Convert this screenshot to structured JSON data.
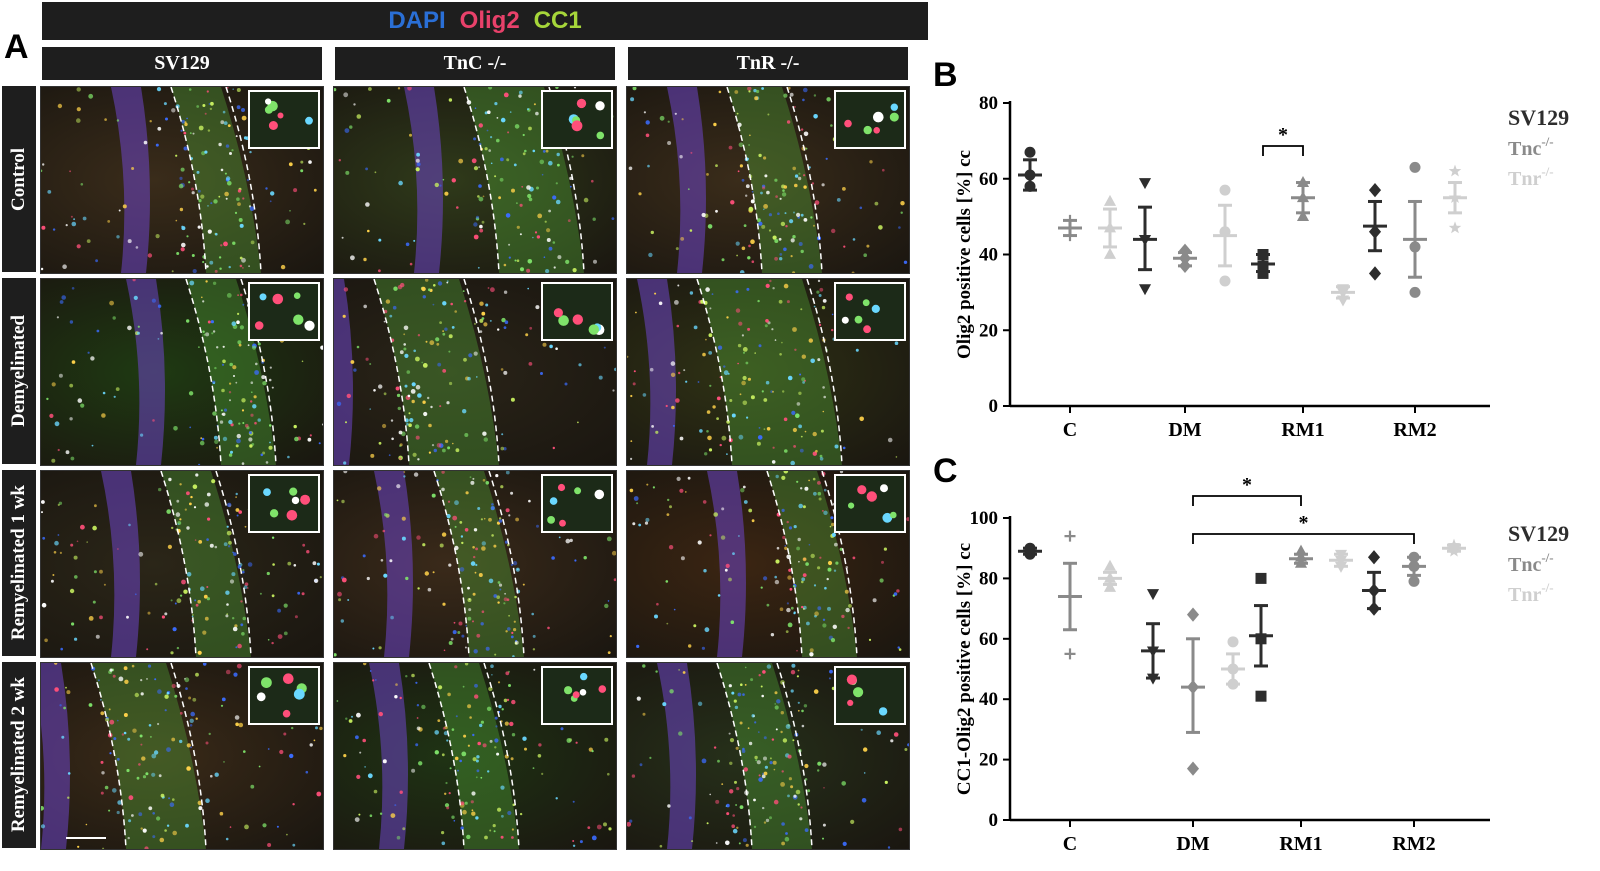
{
  "panel_a": {
    "letter": "A",
    "stain_labels": [
      {
        "text": "DAPI",
        "color": "#2a6fd6"
      },
      {
        "text": "Olig2",
        "color": "#e8416a"
      },
      {
        "text": "CC1",
        "color": "#a6d63a"
      }
    ],
    "columns": [
      "SV129",
      "TnC -/-",
      "TnR -/-"
    ],
    "rows": [
      "Control",
      "Demyelinated",
      "Remyelinated 1 wk",
      "Remyelinated 2 wk"
    ]
  },
  "panel_b": {
    "letter": "B"
  },
  "panel_c": {
    "letter": "C"
  },
  "colors": {
    "sv129": "#2d2d2d",
    "tnc": "#8a8a8a",
    "tnr": "#cfcfcf",
    "bar": "#1e1e1e"
  },
  "chart_data": [
    {
      "type": "scatter",
      "ylabel": "Olig2 positive cells [%] cc",
      "ylim": [
        0,
        80
      ],
      "yticks": [
        0,
        20,
        40,
        60,
        80
      ],
      "categories": [
        "C",
        "DM",
        "RM1",
        "RM2"
      ],
      "legend": [
        "SV129",
        "Tnc",
        "Tnr"
      ],
      "legend_superscript": "-/-",
      "significance": [
        {
          "from": "RM1 SV129",
          "to": "RM1 Tnc",
          "label": "*"
        }
      ],
      "series": [
        {
          "name": "SV129",
          "mean": [
            61,
            44,
            37.5,
            47.5
          ],
          "sem_low": [
            57,
            36,
            35.5,
            41
          ],
          "sem_high": [
            65,
            52.5,
            40,
            54
          ],
          "points": [
            [
              58,
              61,
              67
            ],
            [
              31,
              44,
              59
            ],
            [
              35,
              37,
              40
            ],
            [
              35,
              46,
              57
            ]
          ]
        },
        {
          "name": "Tnc",
          "mean": [
            47,
            39,
            55,
            44
          ],
          "sem_low": [
            45,
            37,
            51,
            34
          ],
          "sem_high": [
            49,
            40.5,
            59,
            54
          ],
          "points": [
            [
              45,
              47,
              49
            ],
            [
              37,
              39,
              41
            ],
            [
              50,
              55,
              59
            ],
            [
              30,
              42,
              63
            ]
          ]
        },
        {
          "name": "Tnr",
          "mean": [
            47,
            45,
            30,
            55
          ],
          "sem_low": [
            42,
            37,
            28.5,
            51
          ],
          "sem_high": [
            52,
            53,
            31.5,
            59
          ],
          "points": [
            [
              40,
              47,
              54
            ],
            [
              33,
              46,
              57
            ],
            [
              28,
              30,
              31
            ],
            [
              47,
              55,
              62
            ]
          ]
        }
      ]
    },
    {
      "type": "scatter",
      "ylabel": "CC1-Olig2 positive cells [%] cc",
      "ylim": [
        0,
        100
      ],
      "yticks": [
        0,
        20,
        40,
        60,
        80,
        100
      ],
      "categories": [
        "C",
        "DM",
        "RM1",
        "RM2"
      ],
      "legend": [
        "SV129",
        "Tnc",
        "Tnr"
      ],
      "legend_superscript": "-/-",
      "significance": [
        {
          "from": "DM Tnc",
          "to": "RM1 Tnc",
          "label": "*"
        },
        {
          "from": "DM Tnc",
          "to": "RM2 Tnc",
          "label": "*"
        }
      ],
      "series": [
        {
          "name": "SV129",
          "mean": [
            89,
            56,
            61,
            76
          ],
          "sem_low": [
            88,
            47,
            51,
            70
          ],
          "sem_high": [
            90,
            65,
            71,
            82
          ],
          "points": [
            [
              88,
              89,
              90
            ],
            [
              47,
              56,
              75
            ],
            [
              41,
              60,
              80
            ],
            [
              70,
              76,
              87
            ]
          ]
        },
        {
          "name": "Tnc",
          "mean": [
            74,
            44,
            86.5,
            84
          ],
          "sem_low": [
            63,
            29,
            85,
            81
          ],
          "sem_high": [
            85,
            60,
            88,
            87
          ],
          "points": [
            [
              55,
              74,
              94
            ],
            [
              17,
              44,
              68
            ],
            [
              85,
              87,
              89
            ],
            [
              79,
              84,
              87
            ]
          ]
        },
        {
          "name": "Tnr",
          "mean": [
            80,
            50,
            86,
            90
          ],
          "sem_low": [
            78,
            45,
            84,
            89
          ],
          "sem_high": [
            82,
            55,
            88,
            91
          ],
          "points": [
            [
              77,
              80,
              84
            ],
            [
              45,
              50,
              59
            ],
            [
              84,
              86,
              88
            ],
            [
              89,
              90,
              91
            ]
          ]
        }
      ]
    }
  ]
}
